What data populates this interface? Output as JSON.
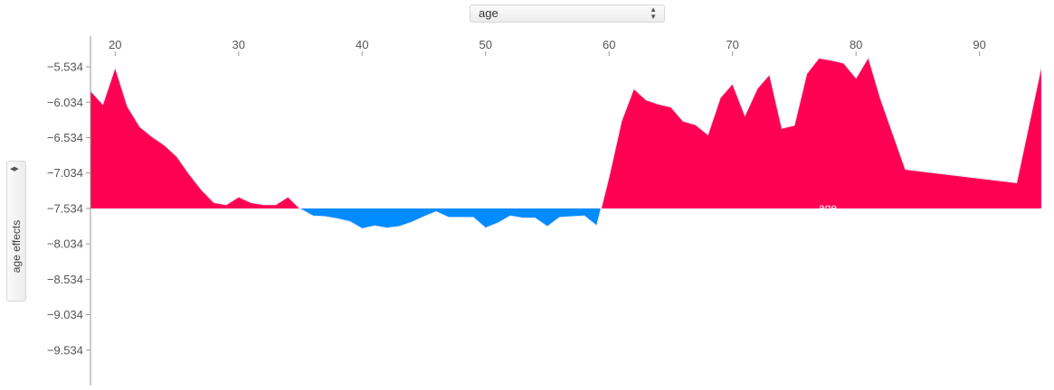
{
  "x_feature_select": {
    "value": "age",
    "arrow_icon": "updown-arrows-icon"
  },
  "y_feature_select": {
    "value": "age effects",
    "arrow_icon": "leftright-arrows-icon"
  },
  "colors": {
    "positive": "#ff0052",
    "negative": "#008bff",
    "edge": "#e8eaf6",
    "axis": "#999999"
  },
  "chart_data": {
    "type": "area",
    "xlabel": "",
    "ylabel": "age effects",
    "xlim": [
      18,
      95.3
    ],
    "ylim": [
      -10.034,
      -5.1
    ],
    "baseline": -7.534,
    "x_ticks": [
      20,
      30,
      40,
      50,
      60,
      70,
      80,
      90
    ],
    "y_ticks": [
      -5.534,
      -6.034,
      -6.534,
      -7.034,
      -7.534,
      -8.034,
      -8.534,
      -9.034,
      -9.534
    ],
    "series": [
      {
        "name": "age",
        "x": [
          18,
          19,
          20,
          21,
          22,
          23,
          24,
          25,
          26,
          27,
          28,
          29,
          30,
          31,
          32,
          33,
          34,
          35,
          36,
          37,
          38,
          39,
          40,
          41,
          42,
          43,
          44,
          45,
          46,
          47,
          48,
          49,
          50,
          51,
          52,
          53,
          54,
          55,
          56,
          57,
          58,
          59,
          60,
          61,
          62,
          63,
          64,
          65,
          66,
          67,
          68,
          69,
          70,
          71,
          72,
          73,
          74,
          75,
          76,
          77,
          78,
          79,
          80,
          81,
          82,
          84,
          93,
          95
        ],
        "y": [
          -5.87,
          -6.06,
          -5.54,
          -6.09,
          -6.38,
          -6.52,
          -6.64,
          -6.8,
          -7.05,
          -7.27,
          -7.45,
          -7.48,
          -7.37,
          -7.45,
          -7.48,
          -7.48,
          -7.37,
          -7.54,
          -7.64,
          -7.65,
          -7.68,
          -7.72,
          -7.82,
          -7.78,
          -7.81,
          -7.79,
          -7.73,
          -7.65,
          -7.58,
          -7.66,
          -7.66,
          -7.66,
          -7.81,
          -7.74,
          -7.64,
          -7.67,
          -7.67,
          -7.79,
          -7.66,
          -7.65,
          -7.64,
          -7.78,
          -7.08,
          -6.3,
          -5.84,
          -6.0,
          -6.06,
          -6.1,
          -6.3,
          -6.35,
          -6.49,
          -5.97,
          -5.77,
          -6.22,
          -5.84,
          -5.64,
          -6.4,
          -6.36,
          -5.63,
          -5.41,
          -5.44,
          -5.48,
          -5.69,
          -5.4,
          -5.99,
          -6.98,
          -7.17,
          -5.53
        ]
      }
    ]
  }
}
